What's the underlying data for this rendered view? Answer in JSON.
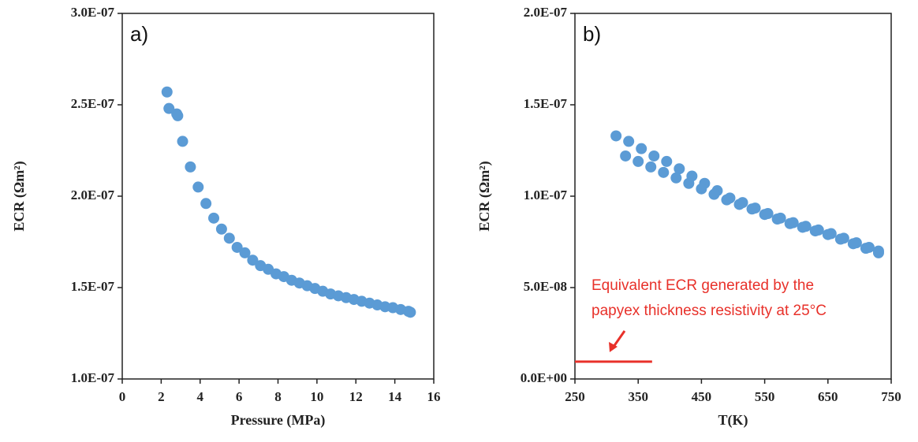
{
  "chart_data": [
    {
      "type": "scatter",
      "panel_label": "a)",
      "x_label": "Pressure (MPa)",
      "y_label": "ECR (Ωm²)",
      "color": "#5b9bd5",
      "xlim": [
        0,
        16
      ],
      "xticks": [
        0,
        2,
        4,
        6,
        8,
        10,
        12,
        14,
        16
      ],
      "ylim": [
        1e-07,
        3e-07
      ],
      "yticks": [
        {
          "value": 1e-07,
          "label": "1.0E-07"
        },
        {
          "value": 1.5e-07,
          "label": "1.5E-07"
        },
        {
          "value": 2e-07,
          "label": "2.0E-07"
        },
        {
          "value": 2.5e-07,
          "label": "2.5E-07"
        },
        {
          "value": 3e-07,
          "label": "3.0E-07"
        }
      ],
      "x": [
        2.3,
        2.4,
        2.8,
        2.85,
        3.1,
        3.5,
        3.9,
        4.3,
        4.7,
        5.1,
        5.5,
        5.9,
        6.3,
        6.7,
        7.1,
        7.5,
        7.9,
        8.3,
        8.7,
        9.1,
        9.5,
        9.9,
        10.3,
        10.7,
        11.1,
        11.5,
        11.9,
        12.3,
        12.7,
        13.1,
        13.5,
        13.9,
        14.3,
        14.7,
        14.8
      ],
      "values": [
        2.57e-07,
        2.48e-07,
        2.45e-07,
        2.44e-07,
        2.3e-07,
        2.16e-07,
        2.05e-07,
        1.96e-07,
        1.88e-07,
        1.82e-07,
        1.77e-07,
        1.72e-07,
        1.69e-07,
        1.65e-07,
        1.62e-07,
        1.6e-07,
        1.575e-07,
        1.56e-07,
        1.54e-07,
        1.525e-07,
        1.51e-07,
        1.495e-07,
        1.48e-07,
        1.465e-07,
        1.455e-07,
        1.445e-07,
        1.435e-07,
        1.425e-07,
        1.415e-07,
        1.405e-07,
        1.395e-07,
        1.39e-07,
        1.38e-07,
        1.37e-07,
        1.365e-07
      ]
    },
    {
      "type": "scatter",
      "panel_label": "b)",
      "x_label": "T(K)",
      "y_label": "ECR (Ωm²)",
      "color": "#5b9bd5",
      "xlim": [
        250,
        750
      ],
      "xticks": [
        250,
        350,
        450,
        550,
        650,
        750
      ],
      "ylim": [
        0,
        2e-07
      ],
      "yticks": [
        {
          "value": 0,
          "label": "0.0E+00"
        },
        {
          "value": 5e-08,
          "label": "5.0E-08"
        },
        {
          "value": 1e-07,
          "label": "1.0E-07"
        },
        {
          "value": 1.5e-07,
          "label": "1.5E-07"
        },
        {
          "value": 2e-07,
          "label": "2.0E-07"
        }
      ],
      "x": [
        315,
        335,
        355,
        375,
        395,
        415,
        435,
        455,
        475,
        495,
        515,
        535,
        555,
        575,
        595,
        615,
        635,
        655,
        675,
        695,
        715,
        730,
        330,
        350,
        370,
        390,
        410,
        430,
        450,
        470,
        490,
        510,
        530,
        550,
        570,
        590,
        610,
        630,
        650,
        670,
        690,
        710,
        730
      ],
      "values": [
        1.33e-07,
        1.3e-07,
        1.26e-07,
        1.22e-07,
        1.19e-07,
        1.15e-07,
        1.11e-07,
        1.07e-07,
        1.03e-07,
        9.9e-08,
        9.65e-08,
        9.35e-08,
        9.05e-08,
        8.8e-08,
        8.55e-08,
        8.35e-08,
        8.15e-08,
        7.95e-08,
        7.7e-08,
        7.45e-08,
        7.2e-08,
        7e-08,
        1.22e-07,
        1.19e-07,
        1.16e-07,
        1.13e-07,
        1.1e-07,
        1.07e-07,
        1.04e-07,
        1.01e-07,
        9.8e-08,
        9.55e-08,
        9.3e-08,
        9e-08,
        8.75e-08,
        8.5e-08,
        8.3e-08,
        8.1e-08,
        7.9e-08,
        7.65e-08,
        7.4e-08,
        7.15e-08,
        6.9e-08
      ],
      "reference_line": {
        "value": 9.5e-09,
        "x": [
          250,
          372
        ],
        "color": "#e8312a"
      },
      "annotation": [
        "Equivalent ECR generated by the",
        "papyex thickness resistivity at 25°C"
      ]
    }
  ]
}
